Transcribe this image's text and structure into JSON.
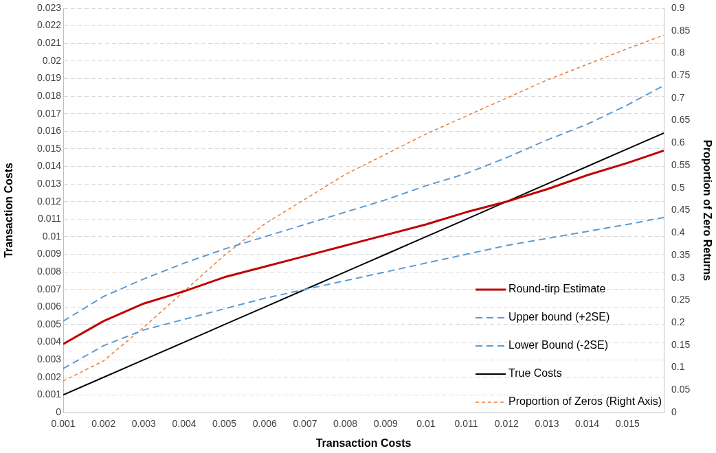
{
  "chart_data": {
    "type": "line",
    "xlabel": "Transaction Costs",
    "ylabel": "Transaction Costs",
    "y2label": "Proportion of Zero Returns",
    "x": [
      0.001,
      0.002,
      0.003,
      0.004,
      0.005,
      0.006,
      0.007,
      0.008,
      0.009,
      0.01,
      0.011,
      0.012,
      0.013,
      0.014,
      0.015,
      0.0159
    ],
    "series": [
      {
        "name": "Round-tirp Estimate",
        "color": "#c00000",
        "line_style": "solid",
        "values": [
          0.0039,
          0.0052,
          0.0062,
          0.0069,
          0.0077,
          0.0083,
          0.0089,
          0.0095,
          0.0101,
          0.0107,
          0.0114,
          0.012,
          0.0127,
          0.0135,
          0.0142,
          0.0149
        ]
      },
      {
        "name": "Upper bound (+2SE)",
        "color": "#5b9bd5",
        "line_style": "dashed",
        "values": [
          0.0052,
          0.0066,
          0.0076,
          0.0085,
          0.0093,
          0.01,
          0.0107,
          0.0114,
          0.0121,
          0.0129,
          0.0136,
          0.0145,
          0.0155,
          0.0164,
          0.0175,
          0.0186
        ]
      },
      {
        "name": "Lower Bound (-2SE)",
        "color": "#5b9bd5",
        "line_style": "dashed",
        "values": [
          0.0025,
          0.0038,
          0.0047,
          0.0053,
          0.0059,
          0.0065,
          0.007,
          0.0075,
          0.008,
          0.0085,
          0.009,
          0.0095,
          0.0099,
          0.0103,
          0.0107,
          0.0111
        ]
      },
      {
        "name": "True Costs",
        "color": "#000000",
        "line_style": "solid",
        "values": [
          0.001,
          0.002,
          0.003,
          0.004,
          0.005,
          0.006,
          0.007,
          0.008,
          0.009,
          0.01,
          0.011,
          0.012,
          0.013,
          0.014,
          0.015,
          0.0159
        ]
      },
      {
        "name": "Proportion of Zeros (Right Axis)",
        "color": "#ed7d31",
        "line_style": "dotted",
        "axis": "y2",
        "values": [
          0.07,
          0.115,
          0.19,
          0.27,
          0.35,
          0.42,
          0.475,
          0.53,
          0.575,
          0.62,
          0.66,
          0.7,
          0.74,
          0.775,
          0.81,
          0.84
        ]
      }
    ],
    "xlim": [
      0.001,
      0.0159
    ],
    "xticks": [
      0.001,
      0.002,
      0.003,
      0.004,
      0.005,
      0.006,
      0.007,
      0.008,
      0.009,
      0.01,
      0.011,
      0.012,
      0.013,
      0.014,
      0.015
    ],
    "ylim": [
      0,
      0.023
    ],
    "yticks": [
      0,
      0.001,
      0.002,
      0.003,
      0.004,
      0.005,
      0.006,
      0.007,
      0.008,
      0.009,
      0.01,
      0.011,
      0.012,
      0.013,
      0.014,
      0.015,
      0.016,
      0.017,
      0.018,
      0.019,
      0.02,
      0.021,
      0.022,
      0.023
    ],
    "y2lim": [
      0,
      0.9
    ],
    "y2ticks": [
      0,
      0.05,
      0.1,
      0.15,
      0.2,
      0.25,
      0.3,
      0.35,
      0.4,
      0.45,
      0.5,
      0.55,
      0.6,
      0.65,
      0.7,
      0.75,
      0.8,
      0.85,
      0.9
    ],
    "grid": "y",
    "legend": "bottom right",
    "marker": "none"
  }
}
